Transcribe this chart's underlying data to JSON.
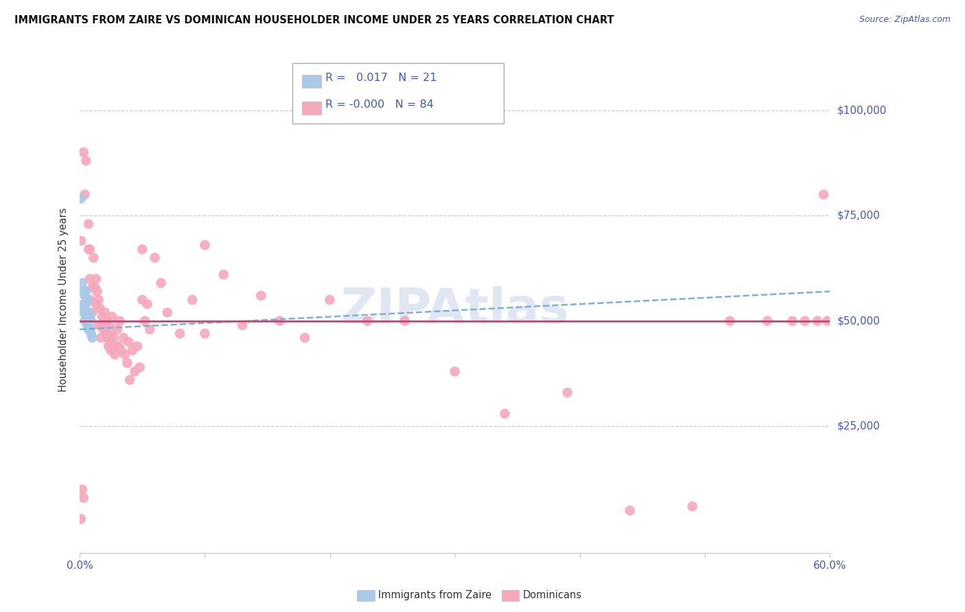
{
  "title": "IMMIGRANTS FROM ZAIRE VS DOMINICAN HOUSEHOLDER INCOME UNDER 25 YEARS CORRELATION CHART",
  "source": "Source: ZipAtlas.com",
  "ylabel": "Householder Income Under 25 years",
  "xlim": [
    0.0,
    0.6
  ],
  "ylim": [
    -5000,
    115000
  ],
  "xticks": [
    0.0,
    0.1,
    0.2,
    0.3,
    0.4,
    0.5,
    0.6
  ],
  "xticklabels": [
    "0.0%",
    "",
    "",
    "",
    "",
    "",
    "60.0%"
  ],
  "ytick_labels_right": [
    "$25,000",
    "$50,000",
    "$75,000",
    "$100,000"
  ],
  "ytick_vals_right": [
    25000,
    50000,
    75000,
    100000
  ],
  "hgrid_vals": [
    25000,
    50000,
    75000,
    100000
  ],
  "legend_r_zaire": "0.017",
  "legend_n_zaire": "21",
  "legend_r_dominican": "-0.000",
  "legend_n_dominican": "84",
  "legend_label_zaire": "Immigrants from Zaire",
  "legend_label_dominican": "Dominicans",
  "zaire_color": "#aac8e8",
  "dominican_color": "#f5a8bc",
  "trend_zaire_color": "#7ab0d8",
  "trend_dominican_color": "#d04070",
  "watermark": "ZIPAtlas",
  "zaire_x": [
    0.001,
    0.002,
    0.003,
    0.003,
    0.003,
    0.004,
    0.004,
    0.004,
    0.005,
    0.005,
    0.005,
    0.006,
    0.006,
    0.006,
    0.007,
    0.007,
    0.008,
    0.008,
    0.009,
    0.009,
    0.01
  ],
  "zaire_y": [
    79000,
    59000,
    57000,
    54000,
    52000,
    56000,
    53000,
    50000,
    57000,
    54000,
    51000,
    55000,
    52000,
    49000,
    52000,
    48000,
    51000,
    48000,
    50000,
    47000,
    46000
  ],
  "dominican_x": [
    0.001,
    0.003,
    0.004,
    0.005,
    0.007,
    0.007,
    0.008,
    0.008,
    0.009,
    0.01,
    0.01,
    0.011,
    0.012,
    0.013,
    0.013,
    0.014,
    0.015,
    0.015,
    0.016,
    0.017,
    0.017,
    0.018,
    0.019,
    0.02,
    0.021,
    0.022,
    0.022,
    0.023,
    0.024,
    0.024,
    0.025,
    0.025,
    0.026,
    0.027,
    0.028,
    0.029,
    0.03,
    0.031,
    0.032,
    0.033,
    0.035,
    0.036,
    0.038,
    0.039,
    0.04,
    0.042,
    0.044,
    0.046,
    0.048,
    0.05,
    0.052,
    0.054,
    0.056,
    0.06,
    0.065,
    0.07,
    0.08,
    0.09,
    0.1,
    0.115,
    0.13,
    0.145,
    0.16,
    0.18,
    0.2,
    0.23,
    0.26,
    0.3,
    0.34,
    0.39,
    0.44,
    0.49,
    0.52,
    0.55,
    0.57,
    0.58,
    0.59,
    0.595,
    0.598,
    0.001,
    0.002,
    0.003,
    0.05,
    0.1
  ],
  "dominican_y": [
    69000,
    90000,
    80000,
    88000,
    73000,
    67000,
    67000,
    60000,
    55000,
    58000,
    52000,
    65000,
    58000,
    60000,
    54000,
    57000,
    55000,
    49000,
    53000,
    49000,
    46000,
    51000,
    48000,
    52000,
    47000,
    50000,
    46000,
    44000,
    49000,
    45000,
    47000,
    43000,
    51000,
    46000,
    42000,
    44000,
    48000,
    44000,
    50000,
    43000,
    46000,
    42000,
    40000,
    45000,
    36000,
    43000,
    38000,
    44000,
    39000,
    67000,
    50000,
    54000,
    48000,
    65000,
    59000,
    52000,
    47000,
    55000,
    68000,
    61000,
    49000,
    56000,
    50000,
    46000,
    55000,
    50000,
    50000,
    38000,
    28000,
    33000,
    5000,
    6000,
    50000,
    50000,
    50000,
    50000,
    50000,
    80000,
    50000,
    3000,
    10000,
    8000,
    55000,
    47000
  ]
}
